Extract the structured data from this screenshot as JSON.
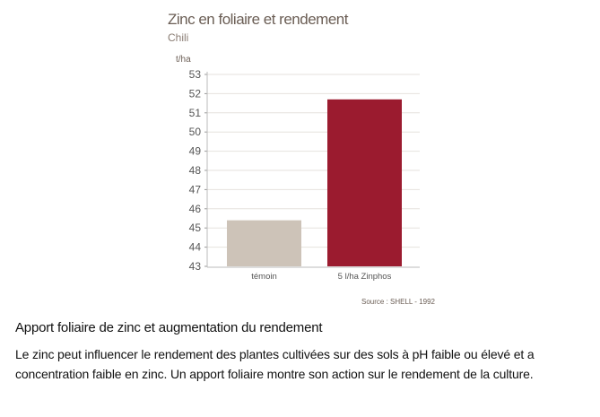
{
  "chart_data": {
    "type": "bar",
    "title": "Zinc en foliaire et rendement",
    "subtitle": "Chili",
    "ylabel": "t/ha",
    "xlabel": "",
    "categories": [
      "témoin",
      "5 l/ha Zinphos"
    ],
    "values": [
      45.4,
      51.7
    ],
    "colors": [
      "#cdc3b8",
      "#9b1b2f"
    ],
    "ylim": [
      43,
      53
    ],
    "yticks": [
      43,
      44,
      45,
      46,
      47,
      48,
      49,
      50,
      51,
      52,
      53
    ],
    "grid": true,
    "source": "Source : SHELL - 1992"
  },
  "caption": {
    "title": "Apport foliaire de zinc et augmentation du rendement",
    "text": "Le zinc peut influencer le rendement des plantes cultivées sur des sols à pH faible ou élevé et a concentration faible en zinc. Un apport foliaire montre son action sur le rendement de la culture."
  }
}
